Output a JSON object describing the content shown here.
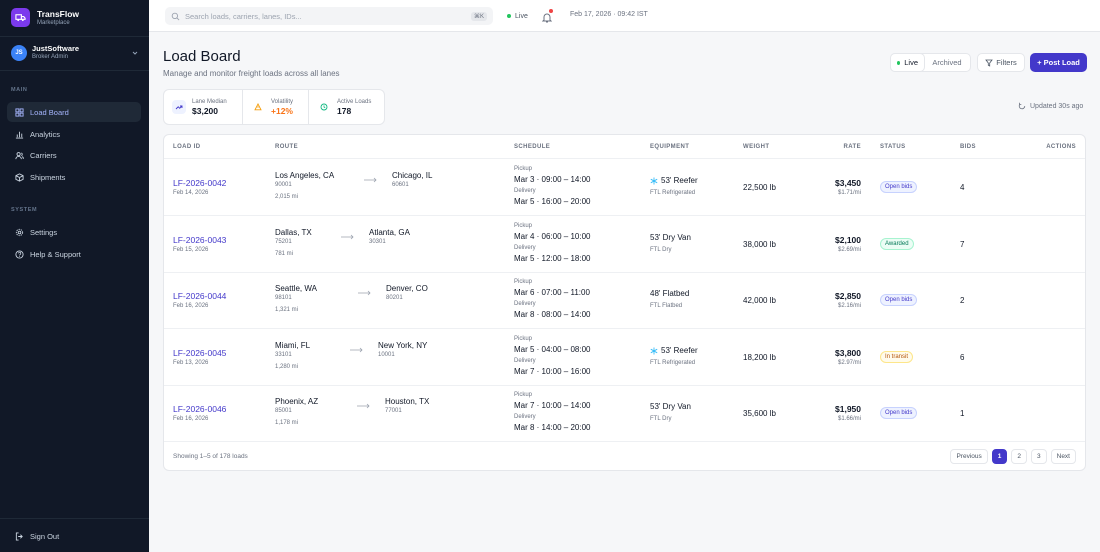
{
  "brand": {
    "name": "TransFlow",
    "subtitle": "Marketplace"
  },
  "account": {
    "initials": "JS",
    "name": "JustSoftware",
    "role": "Broker Admin"
  },
  "sidebar": {
    "main_label": "MAIN",
    "main_items": [
      {
        "label": "Load Board",
        "icon": "grid-icon",
        "active": true
      },
      {
        "label": "Analytics",
        "icon": "bar-chart-icon"
      },
      {
        "label": "Carriers",
        "icon": "users-icon"
      },
      {
        "label": "Shipments",
        "icon": "box-icon"
      }
    ],
    "system_label": "SYSTEM",
    "system_items": [
      {
        "label": "Settings",
        "icon": "gear-icon"
      },
      {
        "label": "Help & Support",
        "icon": "help-icon"
      }
    ],
    "sign_out": "Sign Out"
  },
  "topbar": {
    "search_placeholder": "Search loads, carriers, lanes, IDs...",
    "shortcut": "⌘K",
    "live": "Live",
    "datetime": "Feb 17, 2026 · 09:42 IST"
  },
  "header": {
    "title": "Load Board",
    "subtitle": "Manage and monitor freight loads across all lanes",
    "toggle_live": "Live",
    "toggle_archived": "Archived",
    "filters": "Filters",
    "post_load": "+ Post Load"
  },
  "stats": [
    {
      "label": "Lane Median",
      "value": "$3,200"
    },
    {
      "label": "Volatility",
      "value": "+12%"
    },
    {
      "label": "Active Loads",
      "value": "178"
    }
  ],
  "updated": "Updated 30s ago",
  "table": {
    "columns": [
      "LOAD ID",
      "ROUTE",
      "SCHEDULE",
      "EQUIPMENT",
      "WEIGHT",
      "RATE",
      "STATUS",
      "BIDS",
      "ACTIONS"
    ],
    "pickup_label": "Pickup",
    "delivery_label": "Delivery",
    "rows": [
      {
        "id": "LF-2026-0042",
        "date": "Feb 14, 2026",
        "origin": "Los Angeles, CA",
        "origin_zip": "90001",
        "dest": "Chicago, IL",
        "dest_zip": "60601",
        "miles": "2,015 mi",
        "pickup": "Mar 3 · 09:00 – 14:00",
        "delivery": "Mar 5 · 16:00 – 20:00",
        "equipment": "53' Reefer",
        "equip_type": "FTL Refrigerated",
        "reefer": true,
        "weight": "22,500 lb",
        "rate": "$3,450",
        "rate_mi": "$1.71/mi",
        "status": "Open bids",
        "status_kind": "open",
        "bids": "4"
      },
      {
        "id": "LF-2026-0043",
        "date": "Feb 15, 2026",
        "origin": "Dallas, TX",
        "origin_zip": "75201",
        "dest": "Atlanta, GA",
        "dest_zip": "30301",
        "miles": "781 mi",
        "pickup": "Mar 4 · 06:00 – 10:00",
        "delivery": "Mar 5 · 12:00 – 18:00",
        "equipment": "53' Dry Van",
        "equip_type": "FTL Dry",
        "reefer": false,
        "weight": "38,000 lb",
        "rate": "$2,100",
        "rate_mi": "$2.69/mi",
        "status": "Awarded",
        "status_kind": "awarded",
        "bids": "7"
      },
      {
        "id": "LF-2026-0044",
        "date": "Feb 16, 2026",
        "origin": "Seattle, WA",
        "origin_zip": "98101",
        "dest": "Denver, CO",
        "dest_zip": "80201",
        "miles": "1,321 mi",
        "pickup": "Mar 6 · 07:00 – 11:00",
        "delivery": "Mar 8 · 08:00 – 14:00",
        "equipment": "48' Flatbed",
        "equip_type": "FTL Flatbed",
        "reefer": false,
        "weight": "42,000 lb",
        "rate": "$2,850",
        "rate_mi": "$2.16/mi",
        "status": "Open bids",
        "status_kind": "open",
        "bids": "2"
      },
      {
        "id": "LF-2026-0045",
        "date": "Feb 13, 2026",
        "origin": "Miami, FL",
        "origin_zip": "33101",
        "dest": "New York, NY",
        "dest_zip": "10001",
        "miles": "1,280 mi",
        "pickup": "Mar 5 · 04:00 – 08:00",
        "delivery": "Mar 7 · 10:00 – 16:00",
        "equipment": "53' Reefer",
        "equip_type": "FTL Refrigerated",
        "reefer": true,
        "weight": "18,200 lb",
        "rate": "$3,800",
        "rate_mi": "$2.97/mi",
        "status": "In transit",
        "status_kind": "transit",
        "bids": "6"
      },
      {
        "id": "LF-2026-0046",
        "date": "Feb 16, 2026",
        "origin": "Phoenix, AZ",
        "origin_zip": "85001",
        "dest": "Houston, TX",
        "dest_zip": "77001",
        "miles": "1,178 mi",
        "pickup": "Mar 7 · 10:00 – 14:00",
        "delivery": "Mar 8 · 14:00 – 20:00",
        "equipment": "53' Dry Van",
        "equip_type": "FTL Dry",
        "reefer": false,
        "weight": "35,600 lb",
        "rate": "$1,950",
        "rate_mi": "$1.66/mi",
        "status": "Open bids",
        "status_kind": "open",
        "bids": "1"
      }
    ],
    "showing": "Showing 1–5 of 178 loads",
    "pagination": {
      "previous": "Previous",
      "pages": [
        "1",
        "2",
        "3"
      ],
      "current": "1",
      "next": "Next"
    }
  }
}
